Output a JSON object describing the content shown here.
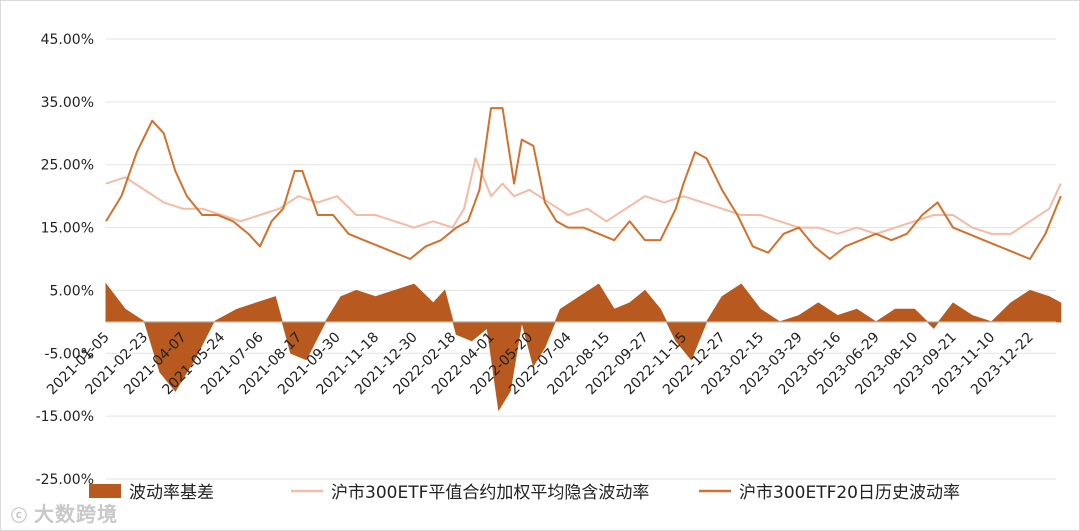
{
  "chart_data": {
    "type": "line",
    "y_ticks": [
      "45.00%",
      "35.00%",
      "25.00%",
      "15.00%",
      "5.00%",
      "-5.00%",
      "-15.00%",
      "-25.00%"
    ],
    "y_tick_values": [
      45,
      35,
      25,
      15,
      5,
      -5,
      -15,
      -25
    ],
    "ylim": [
      -25,
      45
    ],
    "grid": true,
    "x_ticks": [
      "2021-01-05",
      "2021-02-23",
      "2021-04-07",
      "2021-05-24",
      "2021-07-06",
      "2021-08-17",
      "2021-09-30",
      "2021-11-18",
      "2021-12-30",
      "2022-02-18",
      "2022-04-01",
      "2022-05-20",
      "2022-07-04",
      "2022-08-15",
      "2022-09-27",
      "2022-11-15",
      "2022-12-27",
      "2023-02-15",
      "2023-03-29",
      "2023-05-16",
      "2023-06-29",
      "2023-08-10",
      "2023-09-21",
      "2023-11-10",
      "2023-12-22"
    ],
    "legend_position": "bottom",
    "series": [
      {
        "name": "波动率基差",
        "kind": "area",
        "color": "#b85a1f",
        "x_tick_index": [
          0,
          0.5,
          1,
          1.4,
          1.8,
          2.3,
          2.8,
          3.4,
          3.9,
          4.4,
          4.8,
          5.2,
          5.7,
          6.1,
          6.5,
          7.0,
          7.5,
          8.0,
          8.5,
          8.8,
          9.1,
          9.5,
          9.9,
          10.2,
          10.5,
          10.8,
          11.1,
          11.4,
          11.8,
          12.3,
          12.8,
          13.2,
          13.6,
          14.0,
          14.4,
          14.8,
          15.2,
          15.6,
          16.0,
          16.5,
          17.0,
          17.5,
          18.0,
          18.5,
          19.0,
          19.5,
          20.0,
          20.5,
          21.0,
          21.5,
          22.0,
          22.5,
          23.0,
          23.5,
          24.0,
          24.5,
          24.8
        ],
        "values": [
          6,
          2,
          0,
          -8,
          -11,
          -6,
          0,
          2,
          3,
          4,
          -5,
          -6,
          0,
          4,
          5,
          4,
          5,
          6,
          3,
          5,
          -2,
          -3,
          -1,
          -14,
          -11,
          0,
          -7,
          -4,
          2,
          4,
          6,
          2,
          3,
          5,
          2,
          -3,
          -6,
          0,
          4,
          6,
          2,
          0,
          1,
          3,
          1,
          2,
          0,
          2,
          2,
          -1,
          3,
          1,
          0,
          3,
          5,
          4,
          3
        ]
      },
      {
        "name": "沪市300ETF平值合约加权平均隐含波动率",
        "kind": "line",
        "color": "#f4bba6",
        "x_tick_index": [
          0,
          0.5,
          1,
          1.5,
          2,
          2.5,
          3,
          3.5,
          4,
          4.5,
          5,
          5.5,
          6,
          6.5,
          7,
          7.5,
          8,
          8.5,
          9,
          9.3,
          9.6,
          10,
          10.3,
          10.6,
          11,
          11.5,
          12,
          12.5,
          13,
          13.5,
          14,
          14.5,
          15,
          15.5,
          16,
          16.5,
          17,
          17.5,
          18,
          18.5,
          19,
          19.5,
          20,
          20.5,
          21,
          21.5,
          22,
          22.5,
          23,
          23.5,
          24,
          24.5,
          24.8
        ],
        "values": [
          22,
          23,
          21,
          19,
          18,
          18,
          17,
          16,
          17,
          18,
          20,
          19,
          20,
          17,
          17,
          16,
          15,
          16,
          15,
          18,
          26,
          20,
          22,
          20,
          21,
          19,
          17,
          18,
          16,
          18,
          20,
          19,
          20,
          19,
          18,
          17,
          17,
          16,
          15,
          15,
          14,
          15,
          14,
          15,
          16,
          17,
          17,
          15,
          14,
          14,
          16,
          18,
          22
        ]
      },
      {
        "name": "沪市300ETF20日历史波动率",
        "kind": "line",
        "color": "#d2712c",
        "x_tick_index": [
          0,
          0.4,
          0.8,
          1.2,
          1.5,
          1.8,
          2.1,
          2.5,
          2.9,
          3.3,
          3.7,
          4.0,
          4.3,
          4.6,
          4.9,
          5.1,
          5.5,
          5.9,
          6.3,
          6.7,
          7.1,
          7.5,
          7.9,
          8.3,
          8.7,
          9.1,
          9.4,
          9.7,
          10.0,
          10.3,
          10.6,
          10.8,
          11.1,
          11.4,
          11.7,
          12.0,
          12.4,
          12.8,
          13.2,
          13.6,
          14.0,
          14.4,
          14.8,
          15.0,
          15.3,
          15.6,
          16.0,
          16.4,
          16.8,
          17.2,
          17.6,
          18.0,
          18.4,
          18.8,
          19.2,
          19.6,
          20.0,
          20.4,
          20.8,
          21.2,
          21.6,
          22.0,
          22.4,
          22.8,
          23.2,
          23.6,
          24.0,
          24.4,
          24.8
        ],
        "values": [
          16,
          20,
          27,
          32,
          30,
          24,
          20,
          17,
          17,
          16,
          14,
          12,
          16,
          18,
          24,
          24,
          17,
          17,
          14,
          13,
          12,
          11,
          10,
          12,
          13,
          15,
          16,
          21,
          34,
          34,
          22,
          29,
          28,
          19,
          16,
          15,
          15,
          14,
          13,
          16,
          13,
          13,
          18,
          22,
          27,
          26,
          21,
          17,
          12,
          11,
          14,
          15,
          12,
          10,
          12,
          13,
          14,
          13,
          14,
          17,
          19,
          15,
          14,
          13,
          12,
          11,
          10,
          14,
          20
        ]
      }
    ]
  },
  "legend": {
    "items": [
      {
        "label": "波动率基差",
        "kind": "area",
        "color": "#b85a1f"
      },
      {
        "label": "沪市300ETF平值合约加权平均隐含波动率",
        "kind": "line",
        "color": "#f4bba6"
      },
      {
        "label": "沪市300ETF20日历史波动率",
        "kind": "line",
        "color": "#d2712c"
      }
    ]
  },
  "watermark": {
    "logo": "ⓒ",
    "text": "大数跨境"
  }
}
